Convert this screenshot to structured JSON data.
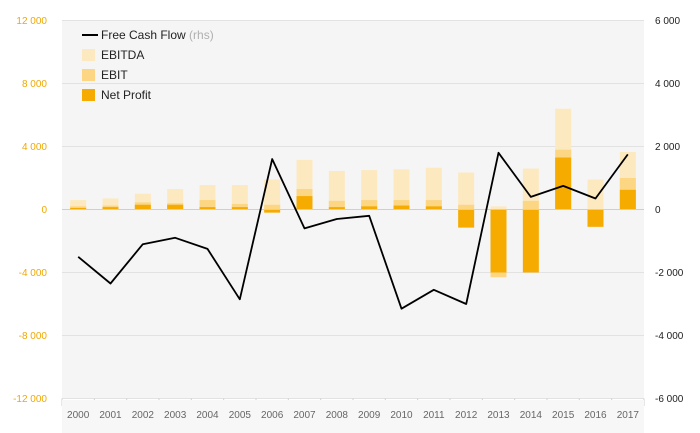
{
  "chart_data": {
    "type": "bar",
    "categories": [
      "2000",
      "2001",
      "2002",
      "2003",
      "2004",
      "2005",
      "2006",
      "2007",
      "2008",
      "2009",
      "2010",
      "2011",
      "2012",
      "2013",
      "2014",
      "2015",
      "2016",
      "2017"
    ],
    "series": [
      {
        "name": "EBITDA",
        "kind": "bar",
        "axis": "left",
        "values": [
          600,
          700,
          1000,
          1300,
          1550,
          1550,
          1900,
          3150,
          2450,
          2500,
          2550,
          2650,
          2350,
          200,
          2600,
          6400,
          1900,
          3650
        ]
      },
      {
        "name": "EBIT",
        "kind": "bar",
        "axis": "left",
        "values": [
          200,
          250,
          450,
          400,
          600,
          350,
          300,
          1300,
          550,
          600,
          600,
          600,
          300,
          -4300,
          550,
          3800,
          0,
          2000
        ]
      },
      {
        "name": "Net Profit",
        "kind": "bar",
        "axis": "left",
        "values": [
          100,
          150,
          300,
          300,
          150,
          150,
          -200,
          850,
          150,
          200,
          250,
          200,
          -1150,
          -4000,
          -4000,
          3300,
          -1100,
          1250
        ]
      },
      {
        "name": "Free Cash Flow",
        "note": "(rhs)",
        "kind": "line",
        "axis": "right",
        "values": [
          -1500,
          -2350,
          -1100,
          -900,
          -1250,
          -2850,
          1600,
          -600,
          -300,
          -200,
          -3150,
          -2550,
          -3000,
          1800,
          400,
          750,
          350,
          1750
        ]
      }
    ],
    "left_axis": {
      "ylim": [
        -12000,
        12000
      ],
      "ticks": [
        "12 000",
        "8 000",
        "4 000",
        "0",
        "-4 000",
        "-8 000",
        "-12 000"
      ]
    },
    "right_axis": {
      "ylim": [
        -6000,
        6000
      ],
      "ticks": [
        "6 000",
        "4 000",
        "2 000",
        "0",
        "-2 000",
        "-4 000",
        "-6 000"
      ]
    },
    "grid": true,
    "legend_position": "top-left",
    "colors": {
      "EBITDA": "#fde9bf",
      "EBIT": "#fcd683",
      "Net Profit": "#f5ab00",
      "Free Cash Flow": "#000000",
      "left_axis_text": "#f0a800",
      "grid": "#e2e2e2",
      "plot_bg": "#f5f5f5"
    }
  },
  "legend": {
    "items": [
      {
        "label": "Free Cash Flow",
        "note": "(rhs)",
        "marker": "line"
      },
      {
        "label": "EBITDA",
        "marker": "swatch"
      },
      {
        "label": "EBIT",
        "marker": "swatch"
      },
      {
        "label": "Net Profit",
        "marker": "swatch"
      }
    ]
  }
}
